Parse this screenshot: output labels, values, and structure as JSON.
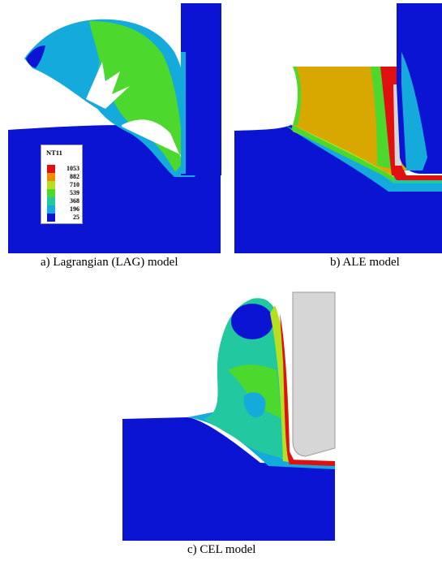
{
  "colors": {
    "band_1": "#0a14d2",
    "band_2": "#14aadc",
    "band_3": "#22c8a0",
    "band_4": "#4cd82c",
    "band_5": "#b4e020",
    "band_6": "#d9a800",
    "band_7": "#e01010",
    "tool": "#d6d6d6",
    "tool_edge": "#9a9a9a"
  },
  "legend": {
    "title": "NT11",
    "entries": [
      {
        "label": "1053",
        "color": "#e01010"
      },
      {
        "label": "882",
        "color": "#f08c00"
      },
      {
        "label": "710",
        "color": "#b4e020"
      },
      {
        "label": "539",
        "color": "#4cd82c"
      },
      {
        "label": "368",
        "color": "#22c8a0"
      },
      {
        "label": "196",
        "color": "#14aadc"
      },
      {
        "label": "25",
        "color": "#0a14d2"
      }
    ]
  },
  "panels": [
    {
      "caption": "a) Lagrangian (LAG) model"
    },
    {
      "caption": "b) ALE model"
    },
    {
      "caption": "c) CEL model"
    }
  ]
}
